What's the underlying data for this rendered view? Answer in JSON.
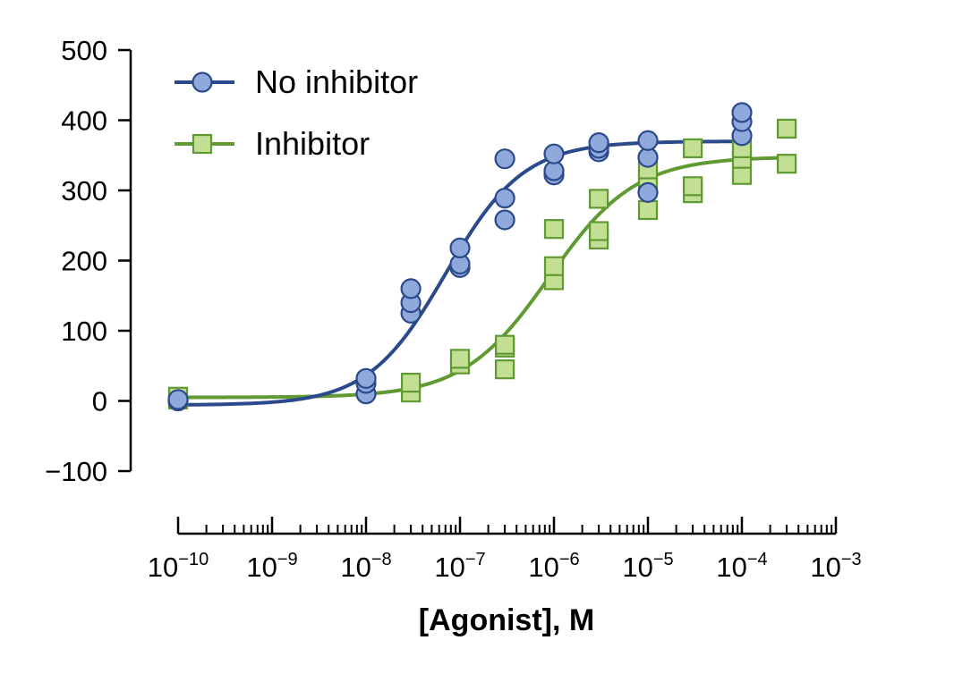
{
  "chart_data": {
    "type": "scatter",
    "title": "",
    "xlabel": "[Agonist], M",
    "ylabel": "",
    "x_scale": "log",
    "xlim": [
      1e-10,
      0.001
    ],
    "ylim": [
      -100,
      500
    ],
    "y_ticks": [
      -100,
      0,
      100,
      200,
      300,
      400,
      500
    ],
    "y_tick_labels": [
      "−100",
      "0",
      "100",
      "200",
      "300",
      "400",
      "500"
    ],
    "x_ticks": [
      1e-10,
      1e-09,
      1e-08,
      1e-07,
      1e-06,
      1e-05,
      0.0001,
      0.001
    ],
    "x_tick_labels": [
      {
        "base": "10",
        "exp": "−10"
      },
      {
        "base": "10",
        "exp": "−9"
      },
      {
        "base": "10",
        "exp": "−8"
      },
      {
        "base": "10",
        "exp": "−7"
      },
      {
        "base": "10",
        "exp": "−6"
      },
      {
        "base": "10",
        "exp": "−5"
      },
      {
        "base": "10",
        "exp": "−4"
      },
      {
        "base": "10",
        "exp": "−3"
      }
    ],
    "grid": false,
    "legend_position": "top-left",
    "series": [
      {
        "name": "No inhibitor",
        "marker": "circle",
        "color": "#2b4a8c",
        "fill": "#8fa9dc",
        "points": [
          [
            1e-10,
            0
          ],
          [
            1e-10,
            2
          ],
          [
            1e-08,
            10
          ],
          [
            1e-08,
            25
          ],
          [
            1e-08,
            32
          ],
          [
            3e-08,
            125
          ],
          [
            3e-08,
            140
          ],
          [
            3e-08,
            160
          ],
          [
            1e-07,
            190
          ],
          [
            1e-07,
            195
          ],
          [
            1e-07,
            218
          ],
          [
            3e-07,
            258
          ],
          [
            3e-07,
            289
          ],
          [
            3e-07,
            345
          ],
          [
            1e-06,
            322
          ],
          [
            1e-06,
            328
          ],
          [
            1e-06,
            352
          ],
          [
            3e-06,
            355
          ],
          [
            3e-06,
            360
          ],
          [
            3e-06,
            368
          ],
          [
            1e-05,
            297
          ],
          [
            1e-05,
            347
          ],
          [
            1e-05,
            371
          ],
          [
            0.0001,
            378
          ],
          [
            0.0001,
            398
          ],
          [
            0.0001,
            411
          ]
        ],
        "fit": {
          "bottom": -6,
          "top": 370,
          "log_ec50": -7.15,
          "hill": 1.05
        }
      },
      {
        "name": "Inhibitor",
        "marker": "square",
        "color": "#5f9a32",
        "fill": "#c2df94",
        "points": [
          [
            1e-10,
            2
          ],
          [
            1e-10,
            6
          ],
          [
            3e-08,
            12
          ],
          [
            3e-08,
            26
          ],
          [
            1e-07,
            52
          ],
          [
            1e-07,
            60
          ],
          [
            3e-07,
            45
          ],
          [
            3e-07,
            76
          ],
          [
            3e-07,
            80
          ],
          [
            1e-06,
            172
          ],
          [
            1e-06,
            192
          ],
          [
            1e-06,
            245
          ],
          [
            3e-06,
            230
          ],
          [
            3e-06,
            242
          ],
          [
            3e-06,
            288
          ],
          [
            1e-05,
            272
          ],
          [
            1e-05,
            315
          ],
          [
            1e-05,
            330
          ],
          [
            3e-05,
            296
          ],
          [
            3e-05,
            306
          ],
          [
            3e-05,
            360
          ],
          [
            0.0001,
            322
          ],
          [
            0.0001,
            345
          ],
          [
            0.0001,
            360
          ],
          [
            0.0003,
            338
          ],
          [
            0.0003,
            388
          ]
        ],
        "fit": {
          "bottom": 5,
          "top": 348,
          "log_ec50": -6.05,
          "hill": 0.95
        }
      }
    ]
  }
}
